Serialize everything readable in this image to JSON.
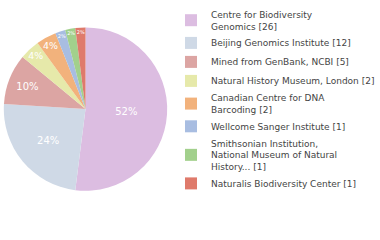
{
  "chart_data": {
    "type": "pie",
    "categories": [
      "Centre for Biodiversity\nGenomics [26]",
      "Beijing Genomics Institute [12]",
      "Mined from GenBank, NCBI [5]",
      "Natural History Museum, London [2]",
      "Canadian Centre for DNA\nBarcoding [2]",
      "Wellcome Sanger Institute [1]",
      "Smithsonian Institution,\nNational Museum of Natural\nHistory... [1]",
      "Naturalis Biodiversity Center [1]"
    ],
    "values": [
      52,
      24,
      10,
      4,
      4,
      2,
      2,
      2
    ],
    "value_labels": [
      "52%",
      "24%",
      "10%",
      "4%",
      "4%",
      "2%",
      "2%",
      "2%"
    ],
    "colors": [
      "#dcbde1",
      "#cfd9e6",
      "#dca5a3",
      "#e6e9aa",
      "#f2b27c",
      "#a8bde1",
      "#a2d08c",
      "#df7a6b"
    ],
    "data_labels": true,
    "legend": "right"
  }
}
